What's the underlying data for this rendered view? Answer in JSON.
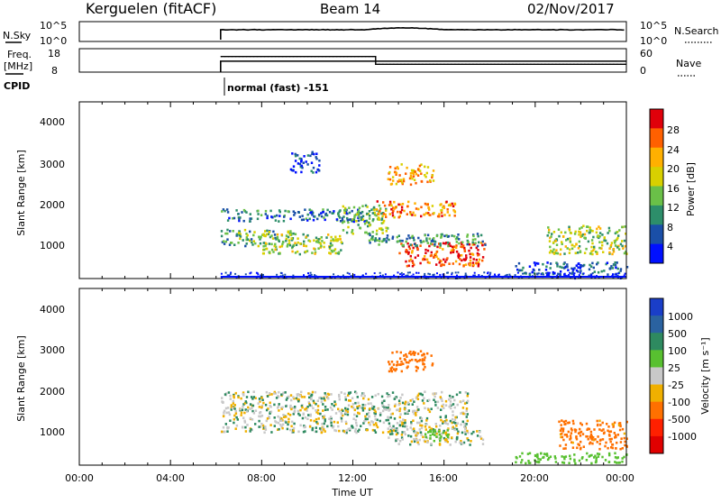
{
  "header": {
    "station": "Kerguelen (fitACF)",
    "beam": "Beam 14",
    "date": "02/Nov/2017"
  },
  "panels": {
    "nsky_label": "N.Sky",
    "nsky_ticks": [
      "10^5",
      "10^0"
    ],
    "nsearch_label": "N.Search",
    "nsearch_ticks": [
      "10^5",
      "10^0"
    ],
    "freq_label_line1": "Freq.",
    "freq_label_line2": "[MHz]",
    "freq_ticks": [
      "18",
      "8"
    ],
    "nave_label": "Nave",
    "nave_ticks": [
      "60",
      "0"
    ],
    "cpid_label": "CPID",
    "cpid_text": "normal (fast) -151"
  },
  "x_axis": {
    "ticks": [
      "00:00",
      "04:00",
      "08:00",
      "12:00",
      "16:00",
      "20:00",
      "00:00"
    ],
    "label": "Time UT"
  },
  "power_panel": {
    "ylabel": "Slant Range [km]",
    "yticks": [
      "4000",
      "3000",
      "2000",
      "1000"
    ],
    "colorbar_label": "Power [dB]",
    "colorbar_ticks": [
      "28",
      "24",
      "20",
      "16",
      "12",
      "8",
      "4"
    ],
    "colorbar_colors": [
      "#e0000a",
      "#ff6000",
      "#ffb000",
      "#d8d000",
      "#6ac048",
      "#2d8e6a",
      "#1a4fa8",
      "#0010ff"
    ]
  },
  "velocity_panel": {
    "ylabel": "Slant Range [km]",
    "yticks": [
      "4000",
      "3000",
      "2000",
      "1000"
    ],
    "colorbar_label": "Velocity [m s⁻¹]",
    "colorbar_ticks": [
      "1000",
      "500",
      "100",
      "25",
      "-25",
      "-100",
      "-500",
      "-1000"
    ],
    "colorbar_colors": [
      "#1a3ec8",
      "#2a62a0",
      "#2e8a60",
      "#58c030",
      "#c8c8c8",
      "#f0b000",
      "#ff7000",
      "#ff2000",
      "#e00000"
    ]
  },
  "chart_data": {
    "type": "heatmap",
    "time_range_hours": [
      0,
      24
    ],
    "range_km": [
      180,
      4500
    ],
    "power_patches": [
      {
        "t": [
          6.2,
          9.5
        ],
        "r": [
          1000,
          1400
        ],
        "power_db": 14
      },
      {
        "t": [
          6.2,
          12.5
        ],
        "r": [
          1600,
          1900
        ],
        "power_db": 10
      },
      {
        "t": [
          8.0,
          11.5
        ],
        "r": [
          800,
          1300
        ],
        "power_db": 18
      },
      {
        "t": [
          11.5,
          13.5
        ],
        "r": [
          1300,
          2000
        ],
        "power_db": 16
      },
      {
        "t": [
          13.0,
          16.5
        ],
        "r": [
          1700,
          2100
        ],
        "power_db": 26
      },
      {
        "t": [
          14.0,
          17.8
        ],
        "r": [
          500,
          1100
        ],
        "power_db": 30
      },
      {
        "t": [
          13.5,
          15.5
        ],
        "r": [
          2500,
          3000
        ],
        "power_db": 24
      },
      {
        "t": [
          12.5,
          17.8
        ],
        "r": [
          1000,
          1300
        ],
        "power_db": 12
      },
      {
        "t": [
          20.5,
          24.0
        ],
        "r": [
          800,
          1500
        ],
        "power_db": 18
      },
      {
        "t": [
          9.2,
          10.5
        ],
        "r": [
          2800,
          3300
        ],
        "power_db": 6
      },
      {
        "t": [
          19.0,
          24.0
        ],
        "r": [
          300,
          600
        ],
        "power_db": 8
      }
    ],
    "velocity_patches": [
      {
        "t": [
          6.2,
          17.0
        ],
        "r": [
          1000,
          2000
        ],
        "velocity": 0
      },
      {
        "t": [
          13.5,
          17.8
        ],
        "r": [
          700,
          1100
        ],
        "velocity": 0
      },
      {
        "t": [
          13.5,
          15.5
        ],
        "r": [
          2500,
          3000
        ],
        "velocity": -200
      },
      {
        "t": [
          15.0,
          16.2
        ],
        "r": [
          800,
          1100
        ],
        "velocity": 120
      },
      {
        "t": [
          19.0,
          24.0
        ],
        "r": [
          250,
          500
        ],
        "velocity": 120
      },
      {
        "t": [
          21.0,
          24.0
        ],
        "r": [
          600,
          1300
        ],
        "velocity": -150
      }
    ],
    "nave_steps": [
      {
        "t": [
          6.2,
          13.0
        ],
        "value": 40
      },
      {
        "t": [
          13.0,
          24.0
        ],
        "value": 20
      }
    ],
    "freq_steps": [
      {
        "t": [
          6.2,
          24.0
        ],
        "value": 12
      }
    ]
  }
}
